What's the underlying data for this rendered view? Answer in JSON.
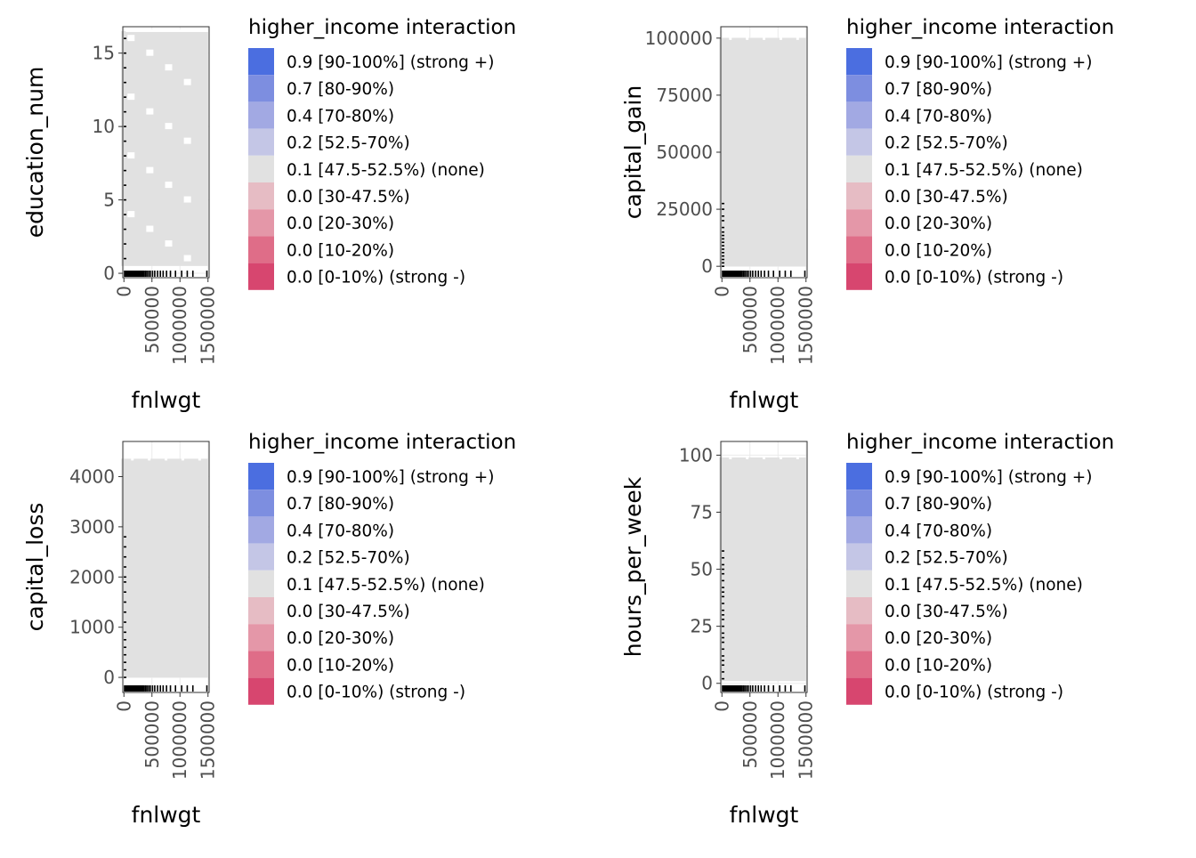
{
  "legend": {
    "title": "higher_income interaction",
    "items": [
      {
        "label": "0.9 [90-100%] (strong +)",
        "color": "#4b6ee0"
      },
      {
        "label": "0.7 [80-90%)",
        "color": "#7d8ee0"
      },
      {
        "label": "0.4 [70-80%)",
        "color": "#a2a9e3"
      },
      {
        "label": "0.2 [52.5-70%)",
        "color": "#c4c6e6"
      },
      {
        "label": "0.1 [47.5-52.5%) (none)",
        "color": "#e1e1e1"
      },
      {
        "label": "0.0 [30-47.5%)",
        "color": "#e6bcc4"
      },
      {
        "label": "0.0 [20-30%)",
        "color": "#e497a8"
      },
      {
        "label": "0.0 [10-20%)",
        "color": "#df6d88"
      },
      {
        "label": "0.0 [0-10%) (strong -)",
        "color": "#d7466f"
      }
    ]
  },
  "chart_data": [
    {
      "type": "heatmap",
      "xlabel": "fnlwgt",
      "ylabel": "education_num",
      "xlim": [
        -20000,
        1520000
      ],
      "ylim": [
        -0.3,
        16.8
      ],
      "xticks": [
        0,
        500000,
        1000000,
        1500000
      ],
      "xtick_labels": [
        "0",
        "500000",
        "1000000",
        "1500000"
      ],
      "yticks": [
        0,
        5,
        10,
        15
      ],
      "ytick_labels": [
        "0",
        "5",
        "10",
        "15"
      ],
      "tiles": {
        "x_range": [
          0,
          1500000
        ],
        "y_range": [
          0.5,
          16.5
        ],
        "value": 0.1,
        "note": "all tiles in the none bin"
      },
      "rug_x": [
        12000,
        30000,
        45000,
        60000,
        75000,
        90000,
        105000,
        118000,
        130000,
        145000,
        160000,
        172000,
        185000,
        198000,
        210000,
        225000,
        240000,
        255000,
        270000,
        285000,
        300000,
        320000,
        340000,
        360000,
        385000,
        410000,
        440000,
        470000,
        510000,
        550000,
        600000,
        650000,
        700000,
        760000,
        830000,
        920000,
        1030000,
        1130000,
        1230000,
        1480000
      ],
      "rug_y": [
        1,
        2,
        3,
        4,
        5,
        6,
        7,
        8,
        9,
        10,
        11,
        12,
        13,
        14,
        15,
        16
      ]
    },
    {
      "type": "heatmap",
      "xlabel": "fnlwgt",
      "ylabel": "capital_gain",
      "xlim": [
        -20000,
        1520000
      ],
      "ylim": [
        -5000,
        105000
      ],
      "xticks": [
        0,
        500000,
        1000000,
        1500000
      ],
      "xtick_labels": [
        "0",
        "500000",
        "1000000",
        "1500000"
      ],
      "yticks": [
        0,
        25000,
        50000,
        75000,
        100000
      ],
      "ytick_labels": [
        "0",
        "25000",
        "50000",
        "75000",
        "100000"
      ],
      "tiles": {
        "x_range": [
          0,
          1500000
        ],
        "y_range": [
          0,
          99999
        ],
        "value": 0.1,
        "note": "all tiles in the none bin"
      },
      "rug_x": [
        12000,
        30000,
        45000,
        60000,
        75000,
        90000,
        105000,
        118000,
        130000,
        145000,
        160000,
        172000,
        185000,
        198000,
        210000,
        225000,
        240000,
        255000,
        270000,
        285000,
        300000,
        320000,
        340000,
        360000,
        385000,
        410000,
        440000,
        470000,
        510000,
        550000,
        600000,
        650000,
        700000,
        760000,
        830000,
        920000,
        1030000,
        1130000,
        1230000,
        1480000
      ],
      "rug_y": [
        0,
        1500,
        3000,
        4500,
        6000,
        7500,
        9000,
        10500,
        12000,
        13500,
        15000,
        17000,
        20000,
        22000,
        25000,
        27500
      ]
    },
    {
      "type": "heatmap",
      "xlabel": "fnlwgt",
      "ylabel": "capital_loss",
      "xlim": [
        -20000,
        1520000
      ],
      "ylim": [
        -300,
        4700
      ],
      "xticks": [
        0,
        500000,
        1000000,
        1500000
      ],
      "xtick_labels": [
        "0",
        "500000",
        "1000000",
        "1500000"
      ],
      "yticks": [
        0,
        1000,
        2000,
        3000,
        4000
      ],
      "ytick_labels": [
        "0",
        "1000",
        "2000",
        "3000",
        "4000"
      ],
      "tiles": {
        "x_range": [
          0,
          1500000
        ],
        "y_range": [
          0,
          4356
        ],
        "value": 0.1,
        "note": "all tiles in the none bin"
      },
      "rug_x": [
        12000,
        30000,
        45000,
        60000,
        75000,
        90000,
        105000,
        118000,
        130000,
        145000,
        160000,
        172000,
        185000,
        198000,
        210000,
        225000,
        240000,
        255000,
        270000,
        285000,
        300000,
        320000,
        340000,
        360000,
        385000,
        410000,
        440000,
        470000,
        510000,
        550000,
        600000,
        650000,
        700000,
        760000,
        830000,
        920000,
        1030000,
        1130000,
        1230000,
        1480000
      ],
      "rug_y": [
        0,
        150,
        300,
        450,
        600,
        750,
        900,
        1100,
        1300,
        1500,
        1700,
        1900,
        2000,
        2200,
        2400,
        2600,
        2800
      ]
    },
    {
      "type": "heatmap",
      "xlabel": "fnlwgt",
      "ylabel": "hours_per_week",
      "xlim": [
        -20000,
        1520000
      ],
      "ylim": [
        -4,
        106
      ],
      "xticks": [
        0,
        500000,
        1000000,
        1500000
      ],
      "xtick_labels": [
        "0",
        "500000",
        "1000000",
        "1500000"
      ],
      "yticks": [
        0,
        25,
        50,
        75,
        100
      ],
      "ytick_labels": [
        "0",
        "25",
        "50",
        "75",
        "100"
      ],
      "tiles": {
        "x_range": [
          0,
          1500000
        ],
        "y_range": [
          1,
          99
        ],
        "value": 0.1,
        "note": "all tiles in the none bin"
      },
      "rug_x": [
        12000,
        30000,
        45000,
        60000,
        75000,
        90000,
        105000,
        118000,
        130000,
        145000,
        160000,
        172000,
        185000,
        198000,
        210000,
        225000,
        240000,
        255000,
        270000,
        285000,
        300000,
        320000,
        340000,
        360000,
        385000,
        410000,
        440000,
        470000,
        510000,
        550000,
        600000,
        650000,
        700000,
        760000,
        830000,
        920000,
        1030000,
        1130000,
        1230000,
        1480000
      ],
      "rug_y": [
        2,
        5,
        8,
        10,
        12,
        15,
        18,
        20,
        22,
        25,
        28,
        30,
        32,
        35,
        38,
        40,
        42,
        45,
        48,
        50,
        52,
        55,
        58
      ]
    }
  ]
}
